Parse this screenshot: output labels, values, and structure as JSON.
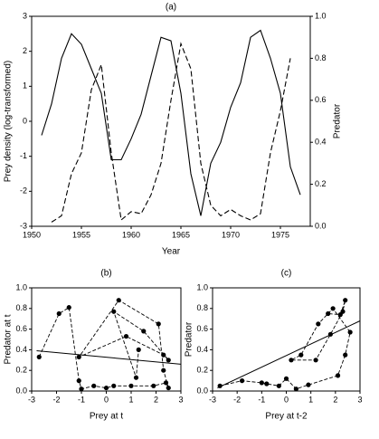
{
  "chart_data": [
    {
      "type": "line",
      "title": "(a)",
      "xlabel": "Year",
      "ylabel": "Prey density (log-transformed)",
      "y2label": "Predator",
      "x": [
        1951,
        1952,
        1953,
        1954,
        1955,
        1956,
        1957,
        1958,
        1959,
        1960,
        1961,
        1962,
        1963,
        1964,
        1965,
        1966,
        1967,
        1968,
        1969,
        1970,
        1971,
        1972,
        1973,
        1974,
        1975,
        1976,
        1977
      ],
      "series": [
        {
          "color": "#000000",
          "dashed": false,
          "values": [
            -0.4,
            0.5,
            1.8,
            2.5,
            2.2,
            1.5,
            0.8,
            -1.1,
            -1.1,
            -0.5,
            0.2,
            1.3,
            2.4,
            2.3,
            0.8,
            -1.5,
            -2.7,
            -1.2,
            -0.6,
            0.4,
            1.1,
            2.4,
            2.6,
            1.8,
            0.8,
            -1.3,
            -2.1
          ]
        },
        {
          "color": "#000000",
          "dashed": true,
          "axis": "y2",
          "values": [
            null,
            0.02,
            0.05,
            0.25,
            0.35,
            0.65,
            0.77,
            0.35,
            0.03,
            0.07,
            0.06,
            0.15,
            0.3,
            0.6,
            0.87,
            0.75,
            0.3,
            0.1,
            0.05,
            0.08,
            0.05,
            0.03,
            0.06,
            0.35,
            0.55,
            0.8,
            null
          ]
        }
      ],
      "xlim": [
        1950,
        1978
      ],
      "xticks": [
        1950,
        1955,
        1960,
        1965,
        1970,
        1975
      ],
      "ylim": [
        -3,
        3
      ],
      "yticks": [
        -3,
        -2,
        -1,
        0,
        1,
        2,
        3
      ],
      "y2lim": [
        0,
        1
      ],
      "y2ticks": [
        {
          "value": 0,
          "label": "0.0"
        },
        0.2,
        0.4,
        0.6,
        0.8,
        {
          "value": 1,
          "label": "1.0"
        }
      ]
    },
    {
      "type": "scatter",
      "title": "(b)",
      "xlabel": "Prey at t",
      "ylabel": "Predator at t",
      "color": "#000000",
      "x": [
        -2.7,
        -1.9,
        -1.5,
        -1.1,
        -1.0,
        -0.5,
        0.0,
        0.3,
        1.0,
        1.9,
        2.4,
        2.5,
        2.3,
        2.1,
        0.5,
        -1.1,
        0.8,
        2.3,
        2.5,
        1.5,
        0.3,
        1.2,
        1.3
      ],
      "values": [
        0.33,
        0.75,
        0.81,
        0.1,
        0.02,
        0.05,
        0.03,
        0.05,
        0.05,
        0.05,
        0.08,
        0.03,
        0.2,
        0.65,
        0.88,
        0.33,
        0.53,
        0.35,
        0.3,
        0.58,
        0.77,
        0.13,
        0.4
      ],
      "fit": {
        "x": [
          -2.8,
          3
        ],
        "values": [
          0.39,
          0.26
        ]
      },
      "xlim": [
        -3,
        3
      ],
      "xticks": [
        -3,
        -2,
        -1,
        0,
        1,
        2,
        3
      ],
      "ylim": [
        0,
        1
      ],
      "yticks": [
        {
          "value": 0,
          "label": "0.0"
        },
        0.2,
        0.4,
        0.6,
        0.8,
        {
          "value": 1,
          "label": "1.0"
        }
      ]
    },
    {
      "type": "scatter",
      "title": "(c)",
      "xlabel": "Prey at t-2",
      "ylabel": "Predator",
      "color": "#000000",
      "x": [
        -2.7,
        -1.8,
        -1.0,
        -0.8,
        -0.3,
        0.0,
        0.4,
        0.9,
        2.1,
        2.4,
        2.6,
        1.9,
        1.3,
        0.6,
        0.2,
        1.2,
        1.8,
        2.3,
        2.4,
        2.2,
        1.7
      ],
      "values": [
        0.05,
        0.1,
        0.08,
        0.07,
        0.05,
        0.12,
        0.02,
        0.06,
        0.15,
        0.35,
        0.57,
        0.8,
        0.65,
        0.35,
        0.3,
        0.3,
        0.55,
        0.77,
        0.88,
        0.74,
        0.75
      ],
      "fit": {
        "x": [
          -2.8,
          3
        ],
        "values": [
          0.03,
          0.68
        ]
      },
      "xlim": [
        -3,
        3
      ],
      "xticks": [
        -3,
        -2,
        -1,
        0,
        1,
        2,
        3
      ],
      "ylim": [
        0,
        1
      ],
      "yticks": [
        {
          "value": 0,
          "label": "0.0"
        },
        0.2,
        0.4,
        0.6,
        0.8,
        {
          "value": 1,
          "label": "1.0"
        }
      ]
    }
  ]
}
